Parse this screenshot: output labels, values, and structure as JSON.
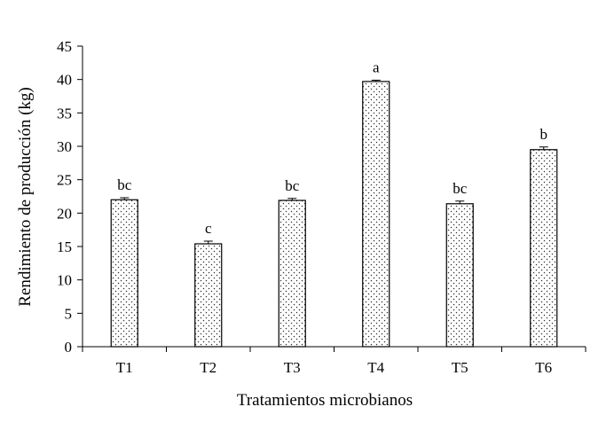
{
  "chart_data": {
    "type": "bar",
    "title": "",
    "xlabel": "Tratamientos microbianos",
    "ylabel": "Rendimiento de producción (kg)",
    "ylim": [
      0,
      45
    ],
    "yticks": [
      0,
      5,
      10,
      15,
      20,
      25,
      30,
      35,
      40,
      45
    ],
    "grid": false,
    "legend": "none",
    "bar_fill": "dotted",
    "categories": [
      "T1",
      "T2",
      "T3",
      "T4",
      "T5",
      "T6"
    ],
    "values": [
      22.0,
      15.4,
      21.9,
      39.7,
      21.4,
      29.5
    ],
    "errors": [
      0.3,
      0.4,
      0.3,
      0.2,
      0.4,
      0.4
    ],
    "significance_labels": [
      "bc",
      "c",
      "bc",
      "a",
      "bc",
      "b"
    ]
  }
}
